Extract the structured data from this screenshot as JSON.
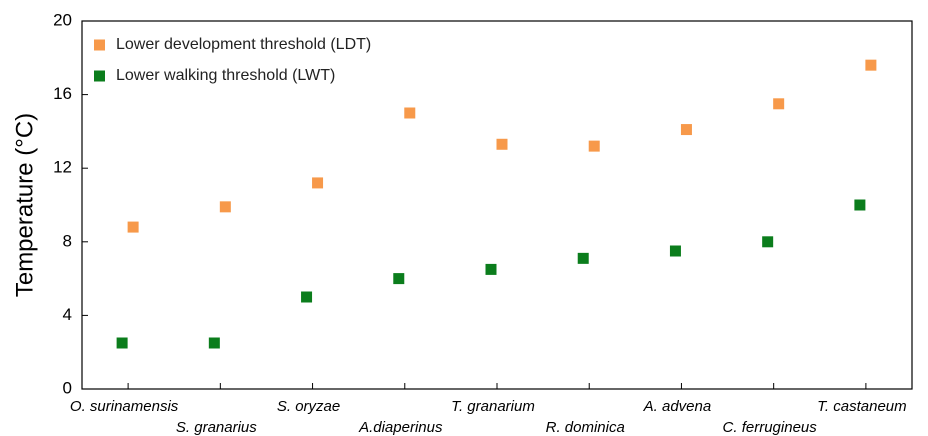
{
  "chart_data": {
    "type": "scatter",
    "y_label": "Temperature (°C)",
    "categories": [
      "O. surinamensis",
      "S. granarius",
      "S. oryzae",
      "A.diaperinus",
      "T. granarium",
      "R. dominica",
      "A. advena",
      "C. ferrugineus",
      "T. castaneum"
    ],
    "series": [
      {
        "name": "Lower development threshold (LDT)",
        "color": "#f7994a",
        "values": [
          8.8,
          9.9,
          11.2,
          15.0,
          13.3,
          13.2,
          14.1,
          15.5,
          17.6
        ]
      },
      {
        "name": "Lower walking threshold (LWT)",
        "color": "#0b7d1c",
        "values": [
          2.5,
          2.5,
          5.0,
          6.0,
          6.5,
          7.1,
          7.5,
          8.0,
          10.0
        ]
      }
    ],
    "ylim": [
      0,
      20
    ],
    "yticks": [
      0,
      4,
      8,
      12,
      16,
      20
    ],
    "legend": "upper left",
    "grid": false
  }
}
